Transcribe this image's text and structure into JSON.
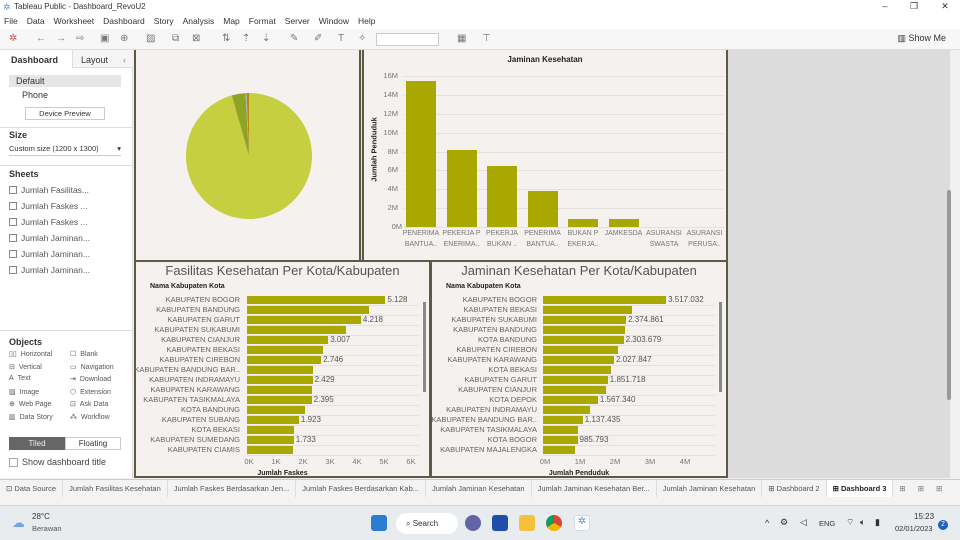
{
  "window": {
    "title": "Tableau Public - Dashboard_RevoU2",
    "controls": [
      "–",
      "❐",
      "✕"
    ]
  },
  "menu": [
    "File",
    "Data",
    "Worksheet",
    "Dashboard",
    "Story",
    "Analysis",
    "Map",
    "Format",
    "Server",
    "Window",
    "Help"
  ],
  "toolbar": {
    "show_me": "Show Me"
  },
  "left_panel": {
    "tabs": {
      "dashboard": "Dashboard",
      "layout": "Layout"
    },
    "devices": [
      "Default",
      "Phone"
    ],
    "device_preview": "Device Preview",
    "size_heading": "Size",
    "size_value": "Custom size (1200 x 1300)",
    "sheets_heading": "Sheets",
    "sheets": [
      "Jumlah Fasilitas...",
      "Jumlah Faskes ...",
      "Jumlah Faskes ...",
      "Jumlah Jaminan...",
      "Jumlah Jaminan...",
      "Jumlah Jaminan..."
    ],
    "objects_heading": "Objects",
    "objects": [
      {
        "label": "Horizontal",
        "icon": "▯▯"
      },
      {
        "label": "Blank",
        "icon": "☐"
      },
      {
        "label": "Vertical",
        "icon": "⊟"
      },
      {
        "label": "Navigation",
        "icon": "▭"
      },
      {
        "label": "Text",
        "icon": "A"
      },
      {
        "label": "Download",
        "icon": "⇥"
      },
      {
        "label": "Image",
        "icon": "▨"
      },
      {
        "label": "Extension",
        "icon": "⬡"
      },
      {
        "label": "Web Page",
        "icon": "⊕"
      },
      {
        "label": "Ask Data",
        "icon": "⊡"
      },
      {
        "label": "Data Story",
        "icon": "▥"
      },
      {
        "label": "Workflow",
        "icon": "⁂"
      }
    ],
    "tiled": "Tiled",
    "floating": "Floating",
    "show_title": "Show dashboard title"
  },
  "colors": {
    "bar": "#a9a800",
    "pie": [
      "#c5cf3f",
      "#8fa325",
      "#9fb7c0",
      "#b8860b"
    ],
    "border": "#5b5b45"
  },
  "chart_data": [
    {
      "type": "pie",
      "values": [
        95.6,
        3.5,
        0.3,
        0.6
      ]
    },
    {
      "type": "bar",
      "title": "Jaminan Kesehatan",
      "ylabel": "Jumlah Penduduk",
      "ylim": [
        0,
        16000000
      ],
      "yticks": [
        "0M",
        "2M",
        "4M",
        "6M",
        "8M",
        "10M",
        "12M",
        "14M",
        "16M"
      ],
      "categories": [
        [
          "PENERIMA",
          "BANTUA.."
        ],
        [
          "PEKERJA P",
          "ENERIMA.."
        ],
        [
          "PEKERJA",
          "BUKAN .."
        ],
        [
          "PENERIMA",
          "BANTUA.."
        ],
        [
          "BUKAN P",
          "EKERJA.."
        ],
        [
          "JAMKESDA",
          ""
        ],
        [
          "ASURANSI",
          "SWASTA"
        ],
        [
          "ASURANSI",
          "PERUSA.."
        ]
      ],
      "values": [
        15500000,
        8200000,
        6500000,
        3800000,
        900000,
        850000,
        0,
        0
      ]
    },
    {
      "type": "bar",
      "orientation": "horizontal",
      "title": "Fasilitas Kesehatan Per Kota/Kabupaten",
      "ylabel": "Nama Kabupaten Kota",
      "xlabel": "Jumlah Faskes",
      "xlim": [
        0,
        6000
      ],
      "xticks": [
        "0K",
        "1K",
        "2K",
        "3K",
        "4K",
        "5K",
        "6K"
      ],
      "categories": [
        "KABUPATEN BOGOR",
        "KABUPATEN BANDUNG",
        "KABUPATEN GARUT",
        "KABUPATEN SUKABUMI",
        "KABUPATEN CIANJUR",
        "KABUPATEN BEKASI",
        "KABUPATEN CIREBON",
        "KABUPATEN BANDUNG BAR..",
        "KABUPATEN INDRAMAYU",
        "KABUPATEN KARAWANG",
        "KABUPATEN TASIKMALAYA",
        "KOTA BANDUNG",
        "KABUPATEN SUBANG",
        "KOTA BEKASI",
        "KABUPATEN SUMEDANG",
        "KABUPATEN CIAMIS"
      ],
      "values": [
        5128,
        4500,
        4218,
        3650,
        3007,
        2820,
        2746,
        2440,
        2429,
        2420,
        2395,
        2150,
        1923,
        1750,
        1733,
        1720
      ],
      "labels": [
        "5.128",
        "",
        "4.218",
        "",
        "3.007",
        "",
        "2.746",
        "",
        "2.429",
        "",
        "2.395",
        "",
        "1.923",
        "",
        "1.733",
        ""
      ]
    },
    {
      "type": "bar",
      "orientation": "horizontal",
      "title": "Jaminan Kesehatan Per Kota/Kabupaten",
      "ylabel": "Nama Kabupaten Kota",
      "xlabel": "Jumlah Penduduk",
      "xlim": [
        0,
        4000000
      ],
      "xticks": [
        "0M",
        "1M",
        "2M",
        "3M",
        "4M"
      ],
      "categories": [
        "KABUPATEN BOGOR",
        "KABUPATEN BEKASI",
        "KABUPATEN SUKABUMI",
        "KABUPATEN BANDUNG",
        "KOTA BANDUNG",
        "KABUPATEN CIREBON",
        "KABUPATEN KARAWANG",
        "KOTA BEKASI",
        "KABUPATEN GARUT",
        "KABUPATEN CIANJUR",
        "KOTA DEPOK",
        "KABUPATEN INDRAMAYU",
        "KABUPATEN BANDUNG BAR..",
        "KABUPATEN TASIKMALAYA",
        "KOTA BOGOR",
        "KABUPATEN MAJALENGKA"
      ],
      "values": [
        3517032,
        2550000,
        2374861,
        2330000,
        2303679,
        2150000,
        2027847,
        1950000,
        1851718,
        1800000,
        1567340,
        1350000,
        1137435,
        1000000,
        985793,
        920000
      ],
      "labels": [
        "3.517.032",
        "",
        "2.374.861",
        "",
        "2.303.679",
        "",
        "2.027.847",
        "",
        "1.851.718",
        "",
        "1.567.340",
        "",
        "1.137.435",
        "",
        "985.793",
        ""
      ]
    }
  ],
  "sheet_tabs": [
    "⊡ Data Source",
    "Jumlah Fasilitas Kesehatan",
    "Jumlah Faskes Berdasarkan Jen...",
    "Jumlah Faskes Berdasarkan Kab...",
    "Jumlah Jaminan Kesehatan",
    "Jumlah Jaminan Kesehatan Ber...",
    "Jumlah Jaminan Kesehatan",
    "⊞ Dashboard 2",
    "⊞ Dashboard 3"
  ],
  "taskbar": {
    "weather_temp": "28°C",
    "weather_desc": "Berawan",
    "search": "Search",
    "lang": "ENG",
    "time": "15:23",
    "date": "02/01/2023",
    "badge": "2"
  }
}
